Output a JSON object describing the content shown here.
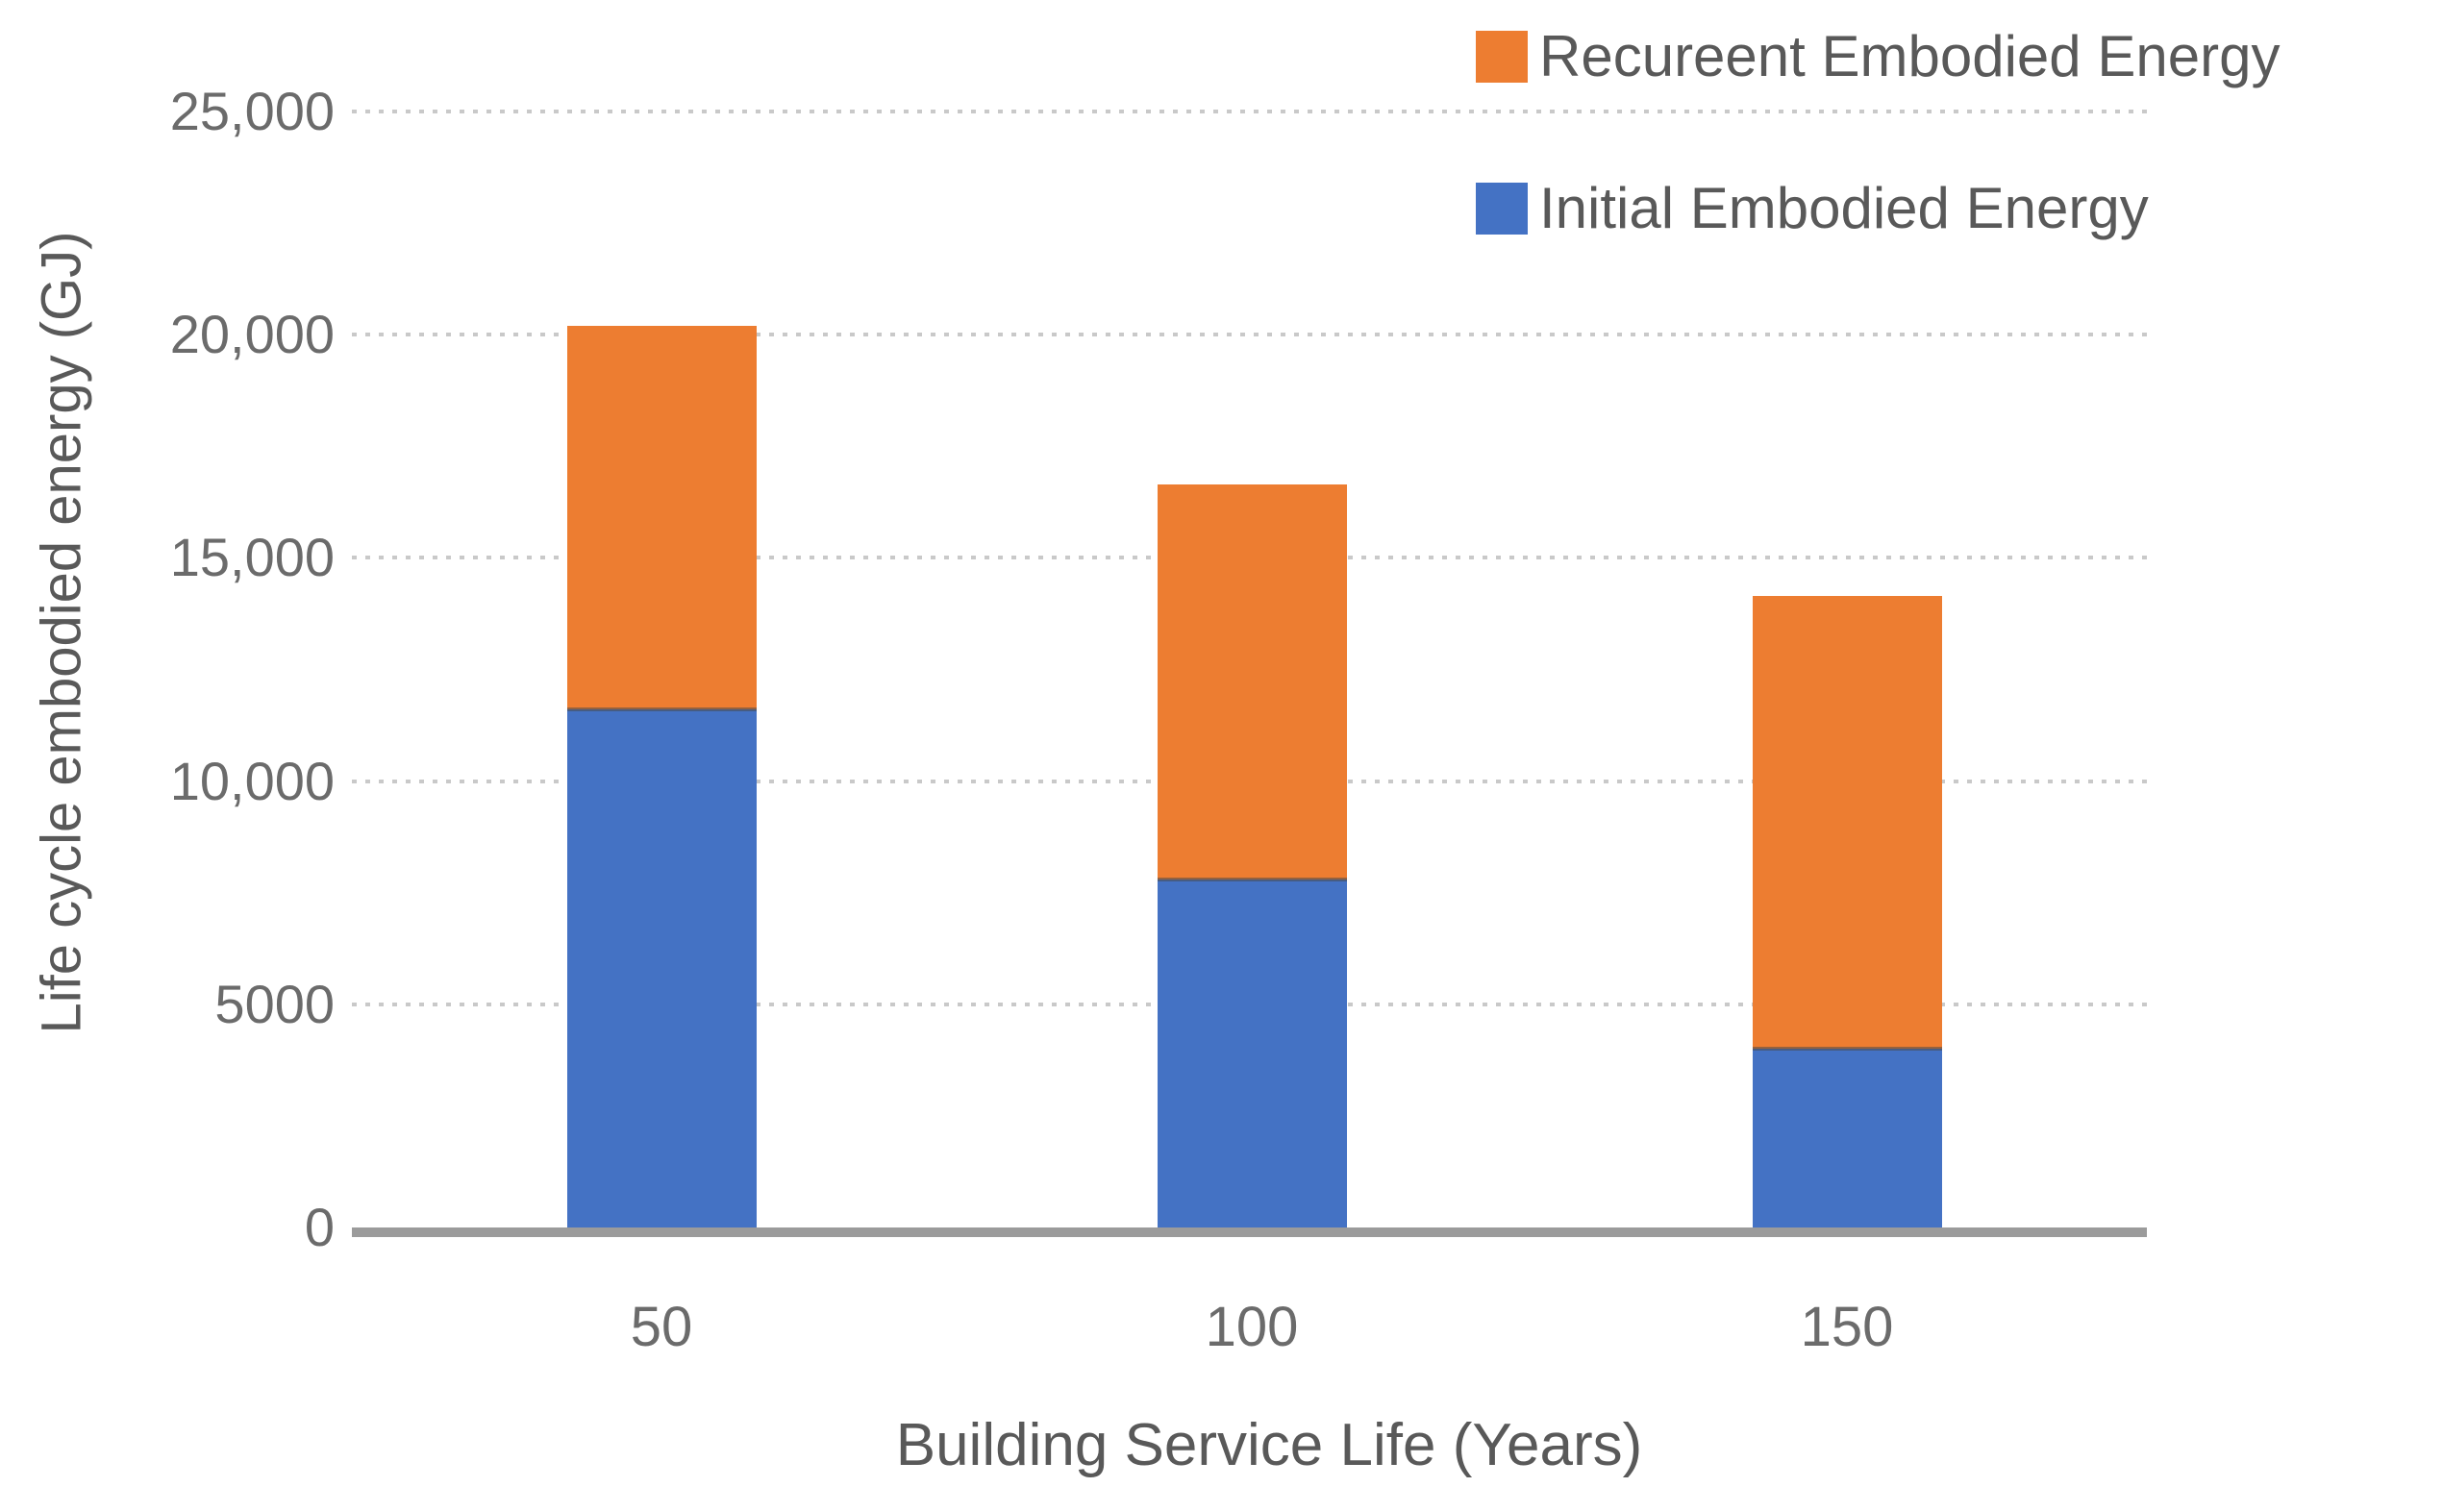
{
  "chart_data": {
    "type": "bar",
    "stacked": true,
    "orientation": "vertical",
    "title": "",
    "xlabel": "Building Service Life (Years)",
    "ylabel": "Life cycle embodied energy (GJ)",
    "categories": [
      "50",
      "100",
      "150"
    ],
    "series": [
      {
        "name": "Initial Embodied Energy",
        "color": "#4472C4",
        "values": [
          11600,
          7800,
          4000
        ]
      },
      {
        "name": "Recureent Embodied Energy",
        "color": "#ED7D31",
        "values": [
          8600,
          8850,
          10150
        ]
      }
    ],
    "stack_totals": [
      20200,
      16650,
      14150
    ],
    "ylim": [
      0,
      25000
    ],
    "yticks": [
      {
        "value": 0,
        "label": "0"
      },
      {
        "value": 5000,
        "label": "5000"
      },
      {
        "value": 10000,
        "label": "10,000"
      },
      {
        "value": 15000,
        "label": "15,000"
      },
      {
        "value": 20000,
        "label": "20,000"
      },
      {
        "value": 25000,
        "label": "25,000"
      }
    ],
    "grid": {
      "horizontal": true,
      "style": "dotted",
      "color": "#C9C9C9"
    },
    "axis_line_color": "#9B9B9B",
    "text_color": "#595959",
    "legend": {
      "position": "top-right",
      "items": [
        {
          "label": "Recureent Embodied Energy",
          "color": "#ED7D31"
        },
        {
          "label": "Initial Embodied Energy",
          "color": "#4472C4"
        }
      ]
    }
  }
}
